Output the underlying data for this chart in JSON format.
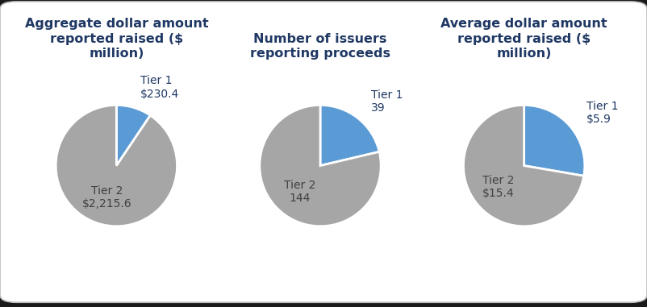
{
  "charts": [
    {
      "title": "Aggregate dollar amount\nreported raised ($\nmillion)",
      "tier1_label": "Tier 1\n$230.4",
      "tier2_label": "Tier 2\n$2,215.6",
      "values": [
        230.4,
        2215.6
      ],
      "tier1_label_inside": false,
      "tier2_label_inside": true
    },
    {
      "title": "Number of issuers\nreporting proceeds",
      "tier1_label": "Tier 1\n39",
      "tier2_label": "Tier 2\n144",
      "values": [
        39,
        144
      ],
      "tier1_label_inside": false,
      "tier2_label_inside": true
    },
    {
      "title": "Average dollar amount\nreported raised ($\nmillion)",
      "tier1_label": "Tier 1\n$5.9",
      "tier2_label": "Tier 2\n$15.4",
      "values": [
        5.9,
        15.4
      ],
      "tier1_label_inside": false,
      "tier2_label_inside": true
    }
  ],
  "tier1_color": "#5b9bd5",
  "tier2_color": "#a6a6a6",
  "outer_bg": "#1a1a1a",
  "box_bg": "#ffffff",
  "box_edge": "#bbbbbb",
  "title_color": "#1f3864",
  "label_color_tier1_outside": "#1f3864",
  "label_color_tier2_inside": "#404040",
  "title_fontsize": 11.5,
  "label_fontsize": 10,
  "pie_edge_color": "white",
  "pie_edge_width": 2
}
